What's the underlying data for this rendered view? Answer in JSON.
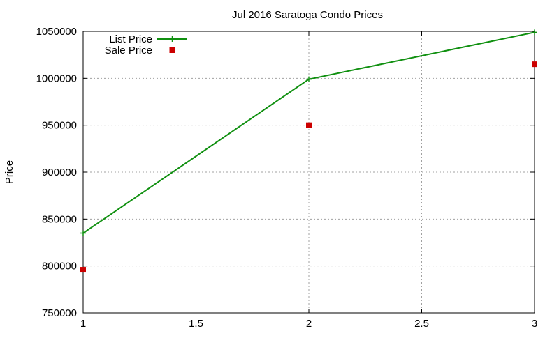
{
  "chart_data": {
    "type": "line",
    "title": "Jul 2016 Saratoga Condo Prices",
    "xlabel": "",
    "ylabel": "Price",
    "xlim": [
      1,
      3
    ],
    "ylim": [
      750000,
      1050000
    ],
    "x_ticks": [
      {
        "value": 1,
        "label": "1"
      },
      {
        "value": 1.5,
        "label": "1.5"
      },
      {
        "value": 2,
        "label": "2"
      },
      {
        "value": 2.5,
        "label": "2.5"
      },
      {
        "value": 3,
        "label": "3"
      }
    ],
    "y_ticks": [
      {
        "value": 750000,
        "label": "750000"
      },
      {
        "value": 800000,
        "label": "800000"
      },
      {
        "value": 850000,
        "label": "850000"
      },
      {
        "value": 900000,
        "label": "900000"
      },
      {
        "value": 950000,
        "label": "950000"
      },
      {
        "value": 1000000,
        "label": "1000000"
      },
      {
        "value": 1050000,
        "label": "1050000"
      }
    ],
    "grid": true,
    "legend_position": "top-left",
    "series": [
      {
        "name": "List Price",
        "style": "linespoints",
        "marker": "plus",
        "color": "#109010",
        "points": [
          {
            "x": 1,
            "y": 835000
          },
          {
            "x": 2,
            "y": 999000
          },
          {
            "x": 3,
            "y": 1049000
          }
        ]
      },
      {
        "name": "Sale Price",
        "style": "points",
        "marker": "square",
        "color": "#cc0000",
        "points": [
          {
            "x": 1,
            "y": 796000
          },
          {
            "x": 2,
            "y": 950000
          },
          {
            "x": 3,
            "y": 1015000
          }
        ]
      }
    ]
  }
}
